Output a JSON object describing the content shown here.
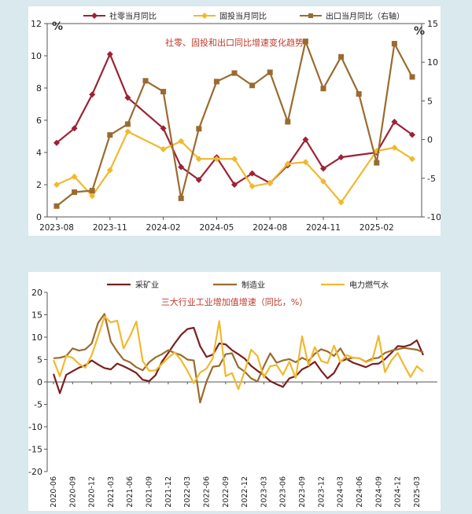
{
  "chart_data": [
    {
      "type": "line",
      "title": "社零、固投和出口同比增速变化趋势",
      "ylabel_left": "%",
      "ylabel_right": "%",
      "ylim_left": [
        0,
        12
      ],
      "ylim_right": [
        -10,
        15
      ],
      "yticks_left": [
        "0",
        "2",
        "4",
        "6",
        "8",
        "10",
        "12"
      ],
      "yticks_right": [
        "-10",
        "-5",
        "0",
        "5",
        "10",
        "15"
      ],
      "x": [
        "2023-08",
        "2023-09",
        "2023-10",
        "2023-11",
        "2023-12",
        "2024-01",
        "2024-02",
        "2024-03",
        "2024-04",
        "2024-05",
        "2024-06",
        "2024-07",
        "2024-08",
        "2024-09",
        "2024-10",
        "2024-11",
        "2024-12",
        "2025-01",
        "2025-02",
        "2025-03",
        "2025-04"
      ],
      "xtick_labels": [
        "2023-08",
        "2023-11",
        "2024-02",
        "2024-05",
        "2024-08",
        "2024-11",
        "2025-02"
      ],
      "legend": [
        "社零当月同比",
        "固投当月同比",
        "出口当月同比（右轴）"
      ],
      "legend_placement": "top",
      "series": [
        {
          "name": "社零当月同比",
          "axis": "left",
          "color": "#9b2335",
          "marker": "diamond",
          "values": [
            4.6,
            5.5,
            7.6,
            10.1,
            7.4,
            null,
            5.5,
            3.1,
            2.3,
            3.7,
            2.0,
            2.7,
            2.1,
            3.2,
            4.8,
            3.0,
            3.7,
            null,
            4.0,
            5.9,
            5.1
          ]
        },
        {
          "name": "固投当月同比",
          "axis": "left",
          "color": "#f0b92d",
          "marker": "diamond",
          "values": [
            2.0,
            2.5,
            1.3,
            2.9,
            5.3,
            null,
            4.2,
            4.7,
            3.6,
            3.6,
            3.6,
            1.9,
            2.1,
            3.3,
            3.4,
            2.2,
            0.9,
            null,
            4.1,
            4.3,
            3.6
          ]
        },
        {
          "name": "出口当月同比（右轴）",
          "axis": "right",
          "color": "#9a6b2f",
          "marker": "square",
          "values": [
            -8.6,
            -6.8,
            -6.6,
            0.6,
            2.0,
            7.6,
            6.2,
            -7.6,
            1.4,
            7.5,
            8.6,
            7.0,
            8.7,
            2.3,
            12.7,
            6.6,
            10.7,
            5.9,
            -3.0,
            12.4,
            8.1
          ]
        }
      ]
    },
    {
      "type": "line",
      "title": "三大行业工业增加值增速（同比，%）",
      "ylim": [
        -20,
        20
      ],
      "yticks": [
        "-20",
        "-15",
        "-10",
        "-5",
        "0",
        "5",
        "10",
        "15",
        "20"
      ],
      "legend": [
        "采矿业",
        "制造业",
        "电力燃气水"
      ],
      "legend_placement": "top",
      "xtick_labels": [
        "2020-06",
        "2020-09",
        "2020-12",
        "2021-03",
        "2021-06",
        "2021-09",
        "2021-12",
        "2022-03",
        "2022-06",
        "2022-09",
        "2022-12",
        "2023-03",
        "2023-06",
        "2023-09",
        "2023-12",
        "2024-03",
        "2024-06",
        "2024-09",
        "2024-12",
        "2025-03"
      ],
      "x_start": "2020-06",
      "x_end": "2025-04",
      "series": [
        {
          "name": "采矿业",
          "color": "#7a1f1f",
          "values": [
            1.8,
            -2.5,
            1.6,
            2.4,
            3.2,
            3.7,
            4.8,
            3.9,
            3.1,
            2.8,
            4.1,
            3.5,
            2.8,
            2.0,
            0.5,
            0.2,
            1.5,
            4.5,
            6.5,
            8.6,
            10.5,
            11.8,
            12.1,
            8.0,
            5.6,
            6.1,
            8.6,
            8.4,
            7.1,
            6.2,
            5.2,
            3.6,
            2.5,
            1.5,
            0.2,
            -0.5,
            -1.1,
            0.8,
            1.3,
            2.8,
            3.5,
            4.5,
            2.5,
            0.8,
            2.0,
            4.6,
            5.1,
            4.3,
            3.8,
            3.3,
            4.0,
            4.1,
            5.1,
            6.5,
            8.0,
            7.9,
            8.3,
            9.3,
            6.0
          ]
        },
        {
          "name": "制造业",
          "color": "#9a6b2f",
          "values": [
            5.3,
            5.4,
            5.8,
            7.5,
            7.0,
            7.3,
            8.6,
            13.2,
            15.2,
            9.0,
            6.8,
            5.0,
            4.4,
            3.3,
            2.6,
            4.4,
            5.5,
            6.2,
            7.1,
            6.5,
            6.0,
            5.0,
            4.8,
            -4.6,
            0.1,
            3.4,
            3.6,
            6.2,
            6.4,
            3.3,
            2.3,
            0.8,
            0.1,
            3.5,
            6.4,
            4.3,
            4.8,
            5.1,
            4.4,
            5.4,
            4.7,
            6.3,
            7.3,
            6.8,
            5.8,
            7.5,
            5.1,
            5.4,
            5.3,
            4.5,
            5.2,
            5.4,
            6.5,
            7.0,
            7.3,
            7.6,
            7.4,
            7.2,
            6.6
          ]
        },
        {
          "name": "电力燃气水",
          "color": "#f0b92d",
          "values": [
            4.9,
            1.3,
            5.8,
            5.4,
            4.0,
            3.2,
            6.0,
            10.2,
            14.6,
            13.3,
            13.7,
            7.5,
            10.2,
            13.5,
            4.7,
            2.5,
            2.6,
            4.0,
            5.4,
            6.6,
            4.9,
            2.5,
            -0.3,
            2.1,
            3.0,
            5.3,
            13.6,
            1.3,
            2.0,
            -1.6,
            2.4,
            7.2,
            5.8,
            1.0,
            3.5,
            3.8,
            1.6,
            4.5,
            0.9,
            10.2,
            3.7,
            7.8,
            4.7,
            4.2,
            8.1,
            4.4,
            6.0,
            5.4,
            5.3,
            4.4,
            4.9,
            10.3,
            2.2,
            4.8,
            6.5,
            3.7,
            1.1,
            3.5,
            2.3
          ]
        }
      ]
    }
  ]
}
